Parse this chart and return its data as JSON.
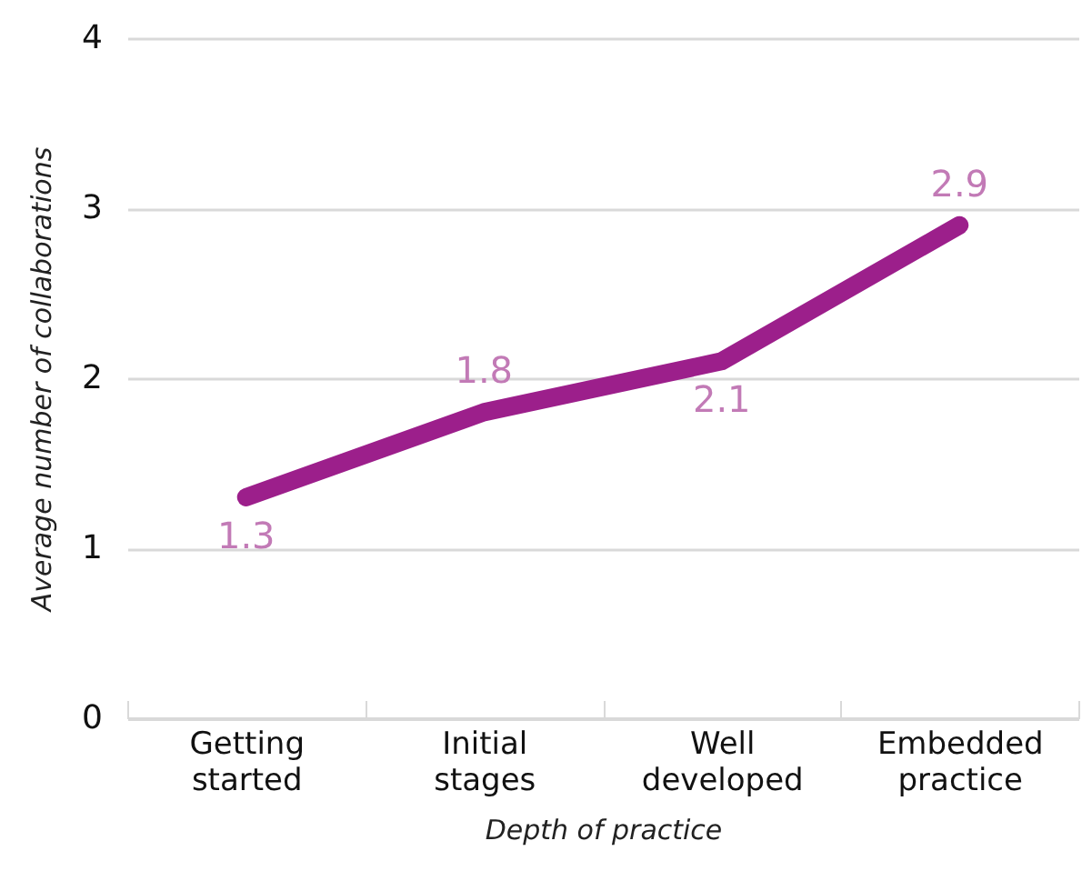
{
  "chart_data": {
    "type": "line",
    "xlabel": "Depth of practice",
    "ylabel": "Average number of collaborations",
    "categories": [
      "Getting started",
      "Initial stages",
      "Well developed",
      "Embedded practice"
    ],
    "values": [
      1.3,
      1.8,
      2.1,
      2.9
    ],
    "color": "#9c1f8b",
    "ylim": [
      0,
      4
    ],
    "yticks": [
      0,
      1,
      2,
      3,
      4
    ],
    "grid": "y",
    "data_labels": true
  }
}
